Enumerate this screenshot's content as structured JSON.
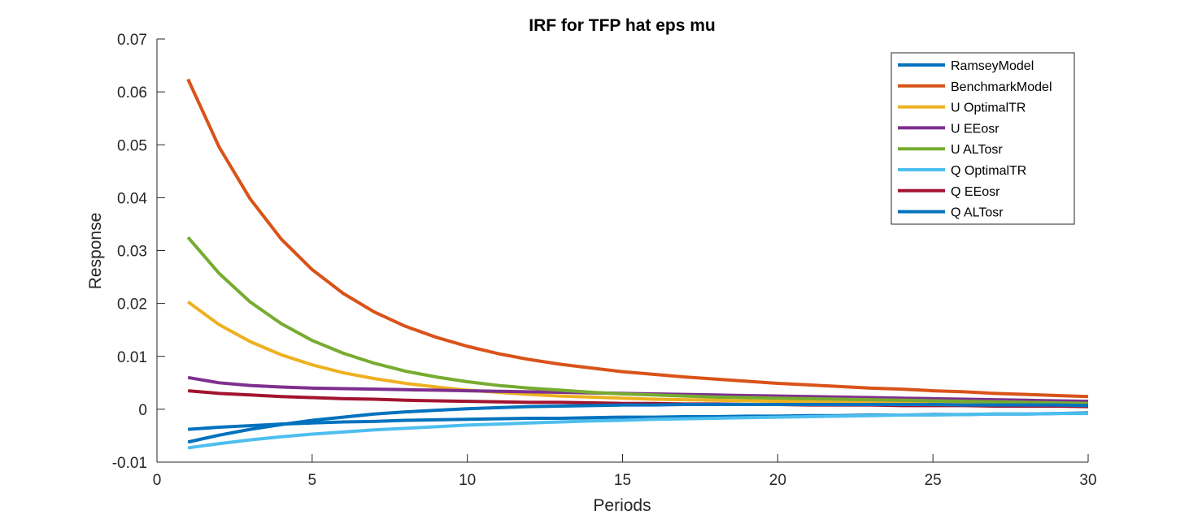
{
  "chart_data": {
    "type": "line",
    "title": "IRF for TFP hat eps mu",
    "xlabel": "Periods",
    "ylabel": "Response",
    "xlim": [
      0,
      30
    ],
    "ylim": [
      -0.01,
      0.07
    ],
    "xticks": [
      0,
      5,
      10,
      15,
      20,
      25,
      30
    ],
    "yticks": [
      -0.01,
      0,
      0.01,
      0.02,
      0.03,
      0.04,
      0.05,
      0.06,
      0.07
    ],
    "xtick_labels": [
      "0",
      "5",
      "10",
      "15",
      "20",
      "25",
      "30"
    ],
    "ytick_labels": [
      "-0.01",
      "0",
      "0.01",
      "0.02",
      "0.03",
      "0.04",
      "0.05",
      "0.06",
      "0.07"
    ],
    "grid": false,
    "legend_position": "top-right",
    "x": [
      1,
      2,
      3,
      4,
      5,
      6,
      7,
      8,
      9,
      10,
      11,
      12,
      13,
      14,
      15,
      16,
      17,
      18,
      19,
      20,
      21,
      22,
      23,
      24,
      25,
      26,
      27,
      28,
      29,
      30
    ],
    "series": [
      {
        "name": "RamseyModel",
        "color": "#0072BD",
        "values": [
          -0.0038,
          -0.0034,
          -0.0031,
          -0.0028,
          -0.0026,
          -0.0024,
          -0.0023,
          -0.0021,
          -0.002,
          -0.0019,
          -0.0018,
          -0.0017,
          -0.0017,
          -0.0016,
          -0.0015,
          -0.0015,
          -0.0014,
          -0.0014,
          -0.0013,
          -0.0013,
          -0.0012,
          -0.0012,
          -0.0011,
          -0.0011,
          -0.001,
          -0.001,
          -0.0009,
          -0.0009,
          -0.0008,
          -0.0007
        ]
      },
      {
        "name": "BenchmarkModel",
        "color": "#D95319",
        "values": [
          0.0624,
          0.0496,
          0.0398,
          0.0322,
          0.0264,
          0.0219,
          0.0184,
          0.0157,
          0.0136,
          0.0119,
          0.0105,
          0.0094,
          0.0085,
          0.0078,
          0.0071,
          0.0066,
          0.0061,
          0.0057,
          0.0053,
          0.0049,
          0.0046,
          0.0043,
          0.004,
          0.0038,
          0.0035,
          0.0033,
          0.003,
          0.0028,
          0.0026,
          0.0024
        ]
      },
      {
        "name": "U OptimalTR",
        "color": "#EDB120",
        "values": [
          0.0203,
          0.016,
          0.0128,
          0.0103,
          0.0084,
          0.0069,
          0.0058,
          0.0049,
          0.0042,
          0.0036,
          0.0032,
          0.0028,
          0.0025,
          0.0023,
          0.0021,
          0.0019,
          0.0018,
          0.0017,
          0.0016,
          0.0015,
          0.0014,
          0.0013,
          0.0013,
          0.0012,
          0.0012,
          0.0011,
          0.0011,
          0.001,
          0.001,
          0.001
        ]
      },
      {
        "name": "U EEosr",
        "color": "#7E2F8E",
        "values": [
          0.006,
          0.005,
          0.0045,
          0.0042,
          0.004,
          0.0039,
          0.0038,
          0.0037,
          0.0036,
          0.0035,
          0.0034,
          0.0033,
          0.0032,
          0.0031,
          0.003,
          0.0029,
          0.0028,
          0.0027,
          0.0026,
          0.0025,
          0.0024,
          0.0023,
          0.0022,
          0.0021,
          0.002,
          0.0019,
          0.0018,
          0.0017,
          0.0016,
          0.0015
        ]
      },
      {
        "name": "U ALTosr",
        "color": "#77AC30",
        "values": [
          0.0325,
          0.0257,
          0.0203,
          0.0162,
          0.013,
          0.0106,
          0.0087,
          0.0072,
          0.0061,
          0.0052,
          0.0045,
          0.004,
          0.0036,
          0.0032,
          0.0029,
          0.0027,
          0.0025,
          0.0023,
          0.0022,
          0.0021,
          0.002,
          0.0019,
          0.0018,
          0.0017,
          0.0016,
          0.0015,
          0.0014,
          0.0013,
          0.0012,
          0.0011
        ]
      },
      {
        "name": "Q OptimalTR",
        "color": "#4DBEEE",
        "values": [
          -0.0073,
          -0.0065,
          -0.0058,
          -0.0052,
          -0.0047,
          -0.0043,
          -0.0039,
          -0.0036,
          -0.0033,
          -0.003,
          -0.0028,
          -0.0026,
          -0.0024,
          -0.0022,
          -0.0021,
          -0.0019,
          -0.0018,
          -0.0017,
          -0.0016,
          -0.0015,
          -0.0014,
          -0.0013,
          -0.0012,
          -0.0011,
          -0.0011,
          -0.001,
          -0.0009,
          -0.0009,
          -0.0008,
          -0.0008
        ]
      },
      {
        "name": "Q EEosr",
        "color": "#A2142F",
        "values": [
          0.0035,
          0.003,
          0.0027,
          0.0024,
          0.0022,
          0.002,
          0.0019,
          0.0017,
          0.0016,
          0.0015,
          0.0014,
          0.0013,
          0.0013,
          0.0012,
          0.0011,
          0.0011,
          0.001,
          0.001,
          0.0009,
          0.0009,
          0.0008,
          0.0008,
          0.0008,
          0.0007,
          0.0007,
          0.0007,
          0.0006,
          0.0006,
          0.0006,
          0.0005
        ]
      },
      {
        "name": "Q ALTosr",
        "color": "#0072BD",
        "values": [
          -0.0062,
          -0.0049,
          -0.0038,
          -0.0029,
          -0.0021,
          -0.0015,
          -0.0009,
          -0.0005,
          -0.0002,
          0.0001,
          0.0003,
          0.0005,
          0.0006,
          0.0007,
          0.0008,
          0.0008,
          0.0009,
          0.0009,
          0.0009,
          0.0009,
          0.0009,
          0.0009,
          0.0009,
          0.0009,
          0.0009,
          0.0008,
          0.0008,
          0.0008,
          0.0008,
          0.0007
        ]
      }
    ]
  }
}
